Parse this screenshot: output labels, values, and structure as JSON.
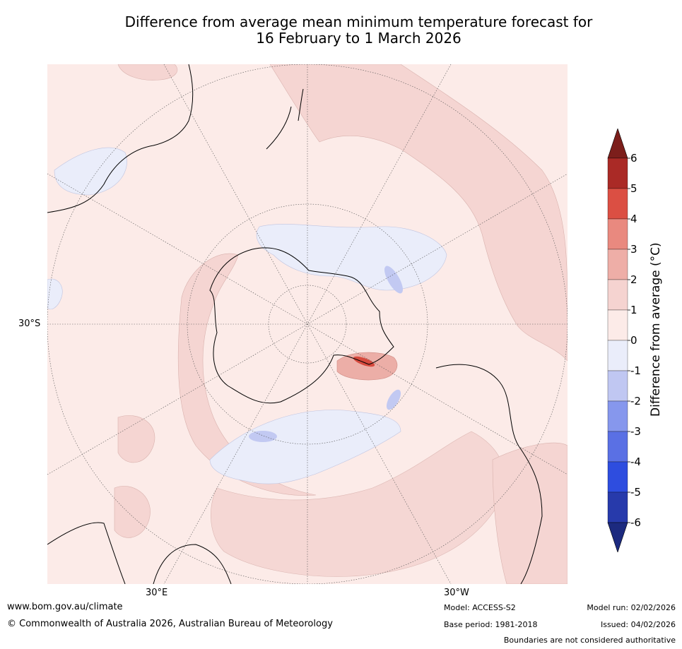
{
  "title": {
    "line1": "Difference from average mean minimum temperature forecast for",
    "line2": "16 February to 1 March 2026"
  },
  "map": {
    "projection": "south-polar-stereographic",
    "lat_label": "30°S",
    "lon_labels": [
      "30°E",
      "30°W"
    ],
    "colors": {
      "land_outline": "#000000",
      "graticule": "#555555",
      "anomaly_0_1": "#fcebe8",
      "anomaly_1_2": "#f5d5d2",
      "anomaly_neg0_neg1": "#eaedfa",
      "anomaly_neg1_neg2": "#c2c9f2",
      "anomaly_2_3": "#ecaea7",
      "anomaly_4_5": "#d64a3e"
    }
  },
  "colorbar": {
    "title": "Difference from average (°C)",
    "ticks": [
      "6",
      "5",
      "4",
      "3",
      "2",
      "1",
      "0",
      "-1",
      "-2",
      "-3",
      "-4",
      "-5",
      "-6"
    ],
    "colors": [
      "#aa2a26",
      "#db4f43",
      "#e9897f",
      "#eeaea7",
      "#f5d3d0",
      "#fcebe8",
      "#eaedfa",
      "#c0c7f2",
      "#8697ed",
      "#5a70e4",
      "#2e4ddf",
      "#273aab"
    ],
    "extend_max_color": "#7c1e1b",
    "extend_min_color": "#1c2a7f"
  },
  "footer": {
    "website": "www.bom.gov.au/climate",
    "copyright": "© Commonwealth of Australia 2026, Australian Bureau of Meteorology",
    "model": "Model: ACCESS-S2",
    "base_period": "Base period: 1981-2018",
    "model_run": "Model run: 02/02/2026",
    "issued": "Issued: 04/02/2026",
    "disclaimer": "Boundaries are not considered authoritative"
  }
}
